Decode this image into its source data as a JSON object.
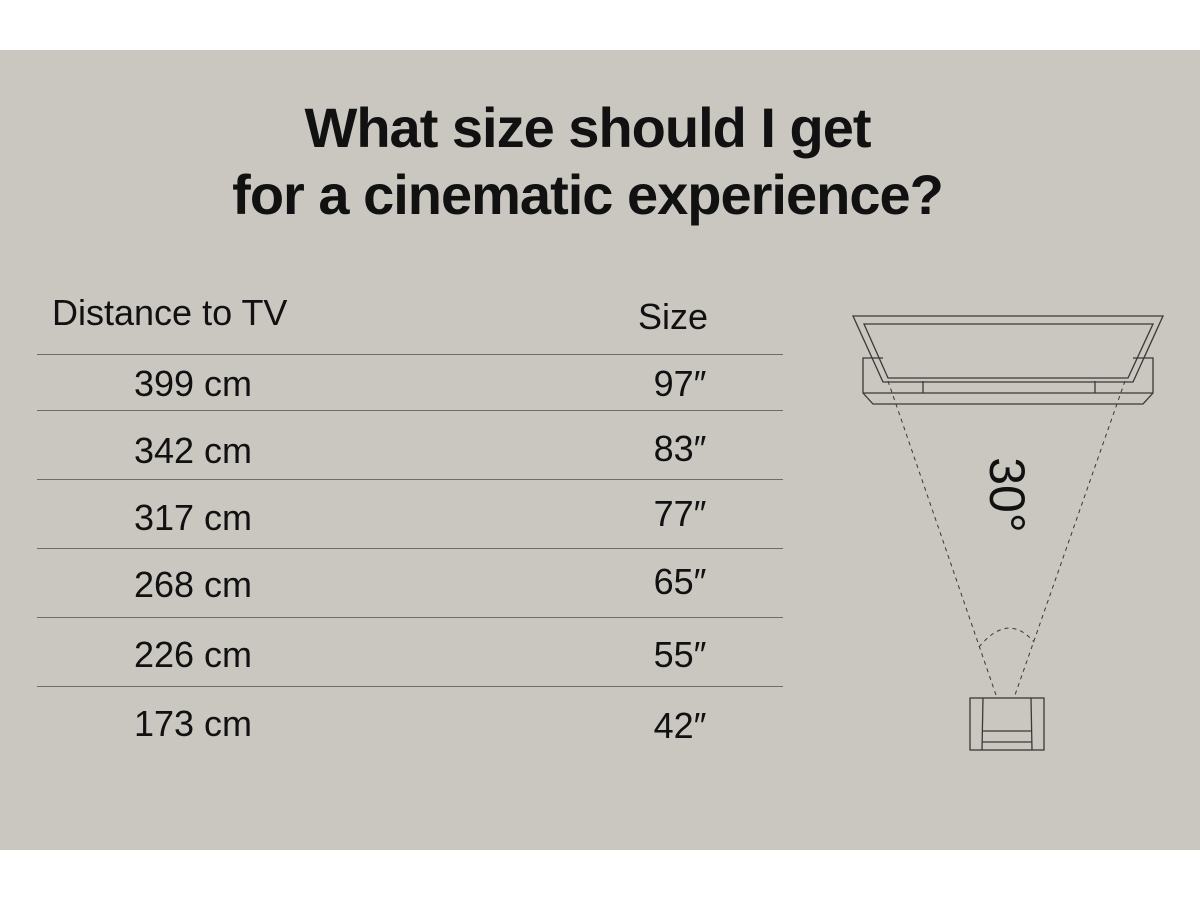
{
  "title": {
    "line1": "What size should I get",
    "line2": "for a cinematic experience?"
  },
  "table": {
    "headers": {
      "distance": "Distance to TV",
      "size": "Size"
    },
    "rows": [
      {
        "distance": "399 cm",
        "size": "97″"
      },
      {
        "distance": "342 cm",
        "size": "83″"
      },
      {
        "distance": "317 cm",
        "size": "77″"
      },
      {
        "distance": "268 cm",
        "size": "65″"
      },
      {
        "distance": "226 cm",
        "size": "55″"
      },
      {
        "distance": "173 cm",
        "size": "42″"
      }
    ]
  },
  "diagram": {
    "angle_label": "30°"
  },
  "colors": {
    "background": "#cac7c1",
    "text": "#111111"
  }
}
